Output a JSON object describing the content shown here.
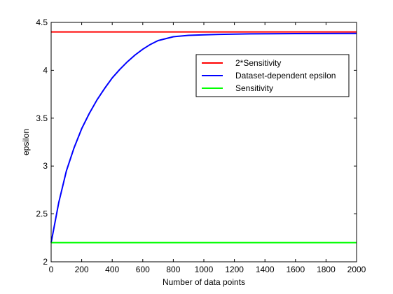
{
  "chart_data": {
    "type": "line",
    "xlabel": "Number of data points",
    "ylabel": "epsilon",
    "xlim": [
      0,
      2000
    ],
    "ylim": [
      2,
      4.5
    ],
    "xticks": [
      0,
      200,
      400,
      600,
      800,
      1000,
      1200,
      1400,
      1600,
      1800,
      2000
    ],
    "yticks": [
      2,
      2.5,
      3,
      3.5,
      4,
      4.5
    ],
    "xtick_labels": [
      "0",
      "200",
      "400",
      "600",
      "800",
      "1000",
      "1200",
      "1400",
      "1600",
      "1800",
      "2000"
    ],
    "ytick_labels": [
      "2",
      "2.5",
      "3",
      "3.5",
      "4",
      "4.5"
    ],
    "grid": false,
    "legend_position": "top-right",
    "series": [
      {
        "name": "2*Sensitivity",
        "color": "#ff0000",
        "x": [
          0,
          2000
        ],
        "y": [
          4.4,
          4.4
        ]
      },
      {
        "name": "Dataset-dependent epsilon",
        "color": "#0000ff",
        "x": [
          0,
          50,
          100,
          150,
          200,
          250,
          300,
          350,
          400,
          450,
          500,
          550,
          600,
          650,
          700,
          750,
          800,
          900,
          1000,
          1100,
          1200,
          1300,
          1400,
          1600,
          1800,
          2000
        ],
        "y": [
          2.2,
          2.62,
          2.95,
          3.19,
          3.39,
          3.55,
          3.69,
          3.81,
          3.92,
          4.01,
          4.09,
          4.16,
          4.22,
          4.27,
          4.31,
          4.33,
          4.35,
          4.365,
          4.37,
          4.375,
          4.378,
          4.38,
          4.381,
          4.383,
          4.384,
          4.385
        ]
      },
      {
        "name": "Sensitivity",
        "color": "#00ff00",
        "x": [
          0,
          2000
        ],
        "y": [
          2.2,
          2.2
        ]
      }
    ]
  }
}
